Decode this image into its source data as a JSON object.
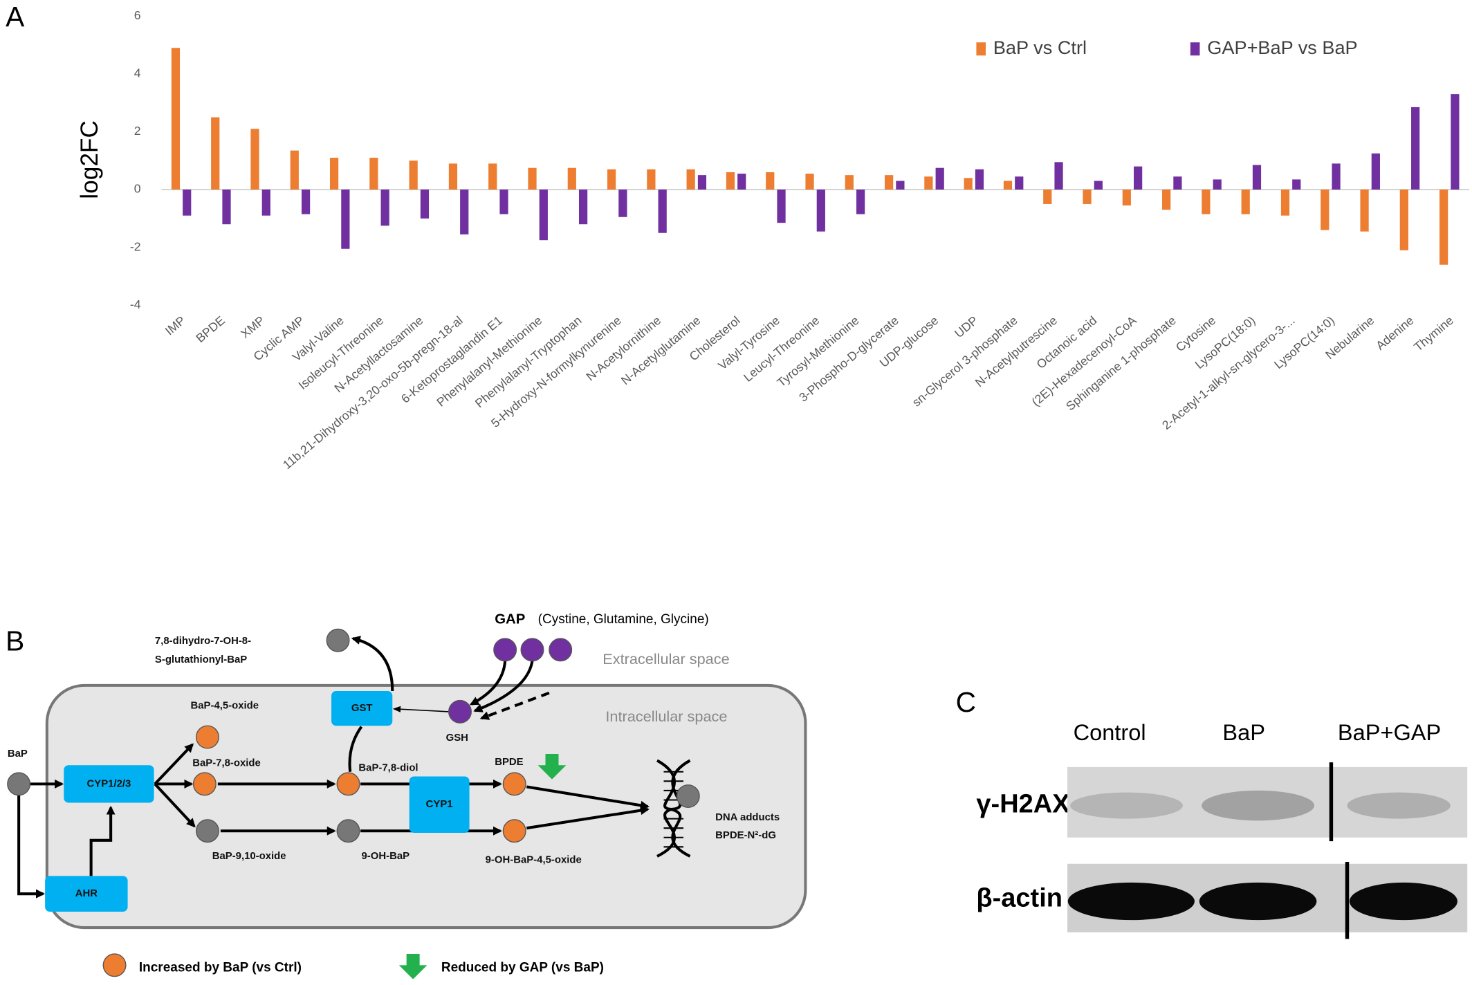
{
  "panels": [
    "A",
    "B",
    "C"
  ],
  "chart_data": {
    "type": "bar",
    "ylabel": "log2FC",
    "categories": [
      "IMP",
      "BPDE",
      "XMP",
      "Cyclic AMP",
      "Valyl-Valine",
      "Isoleucyl-Threonine",
      "N-Acetyllactosamine",
      "11b,21-Dihydroxy-3,20-oxo-5b-pregn-18-al",
      "6-Ketoprostaglandin E1",
      "Phenylalanyl-Methionine",
      "Phenylalanyl-Tryptophan",
      "5-Hydroxy-N-formylkynurenine",
      "N-Acetylornithine",
      "N-Acetylglutamine",
      "Cholesterol",
      "Valyl-Tyrosine",
      "Leucyl-Threonine",
      "Tyrosyl-Methionine",
      "3-Phospho-D-glycerate",
      "UDP-glucose",
      "UDP",
      "sn-Glycerol 3-phosphate",
      "N-Acetylputrescine",
      "Octanoic acid",
      "(2E)-Hexadecenoyl-CoA",
      "Sphinganine 1-phosphate",
      "Cytosine",
      "LysoPC(18:0)",
      "2-Acetyl-1-alkyl-sn-glycero-3-...",
      "LysoPC(14:0)",
      "Nebularine",
      "Adenine",
      "Thymine"
    ],
    "series": [
      {
        "name": "BaP vs Ctrl",
        "color": "#ed7d31",
        "values": [
          4.9,
          2.5,
          2.1,
          1.35,
          1.1,
          1.1,
          1.0,
          0.9,
          0.9,
          0.75,
          0.75,
          0.7,
          0.7,
          0.7,
          0.6,
          0.6,
          0.55,
          0.5,
          0.5,
          0.45,
          0.4,
          0.3,
          -0.5,
          -0.5,
          -0.55,
          -0.7,
          -0.85,
          -0.85,
          -0.9,
          -1.4,
          -1.45,
          -2.1,
          -2.6
        ]
      },
      {
        "name": "GAP+BaP vs BaP",
        "color": "#7030a0",
        "values": [
          -0.9,
          -1.2,
          -0.9,
          -0.85,
          -2.05,
          -1.25,
          -1.0,
          -1.55,
          -0.85,
          -1.75,
          -1.2,
          -0.95,
          -1.5,
          0.5,
          0.55,
          -1.15,
          -1.45,
          -0.85,
          0.3,
          0.75,
          0.7,
          0.45,
          0.95,
          0.3,
          0.8,
          0.45,
          0.35,
          0.85,
          0.35,
          0.9,
          1.25,
          2.85,
          3.3
        ]
      }
    ],
    "ylim": [
      -4,
      6
    ],
    "yticks": [
      -4,
      -2,
      0,
      2,
      4,
      6
    ],
    "grid": false
  },
  "diagram": {
    "labels": [
      "BaP",
      "CYP1/2/3",
      "AHR",
      "GST",
      "CYP1",
      "7,8-dihydro-7-OH-8-",
      "S-glutathionyl-BaP",
      "BaP-4,5-oxide",
      "BaP-7,8-oxide",
      "BaP-9,10-oxide",
      "BaP-7,8-diol",
      "9-OH-BaP",
      "BPDE",
      "9-OH-BaP-4,5-oxide",
      "DNA adducts",
      "BPDE-N²-dG",
      "GSH",
      "GAP",
      "(Cystine, Glutamine, Glycine)",
      "Extracellular space",
      "Intracellular space"
    ],
    "legend": [
      "Increased by BaP (vs Ctrl)",
      "Reduced by GAP (vs BaP)"
    ]
  },
  "blot": {
    "columns": [
      "Control",
      "BaP",
      "BaP+GAP"
    ],
    "rows": [
      "γ-H2AX",
      "β-actin"
    ]
  }
}
